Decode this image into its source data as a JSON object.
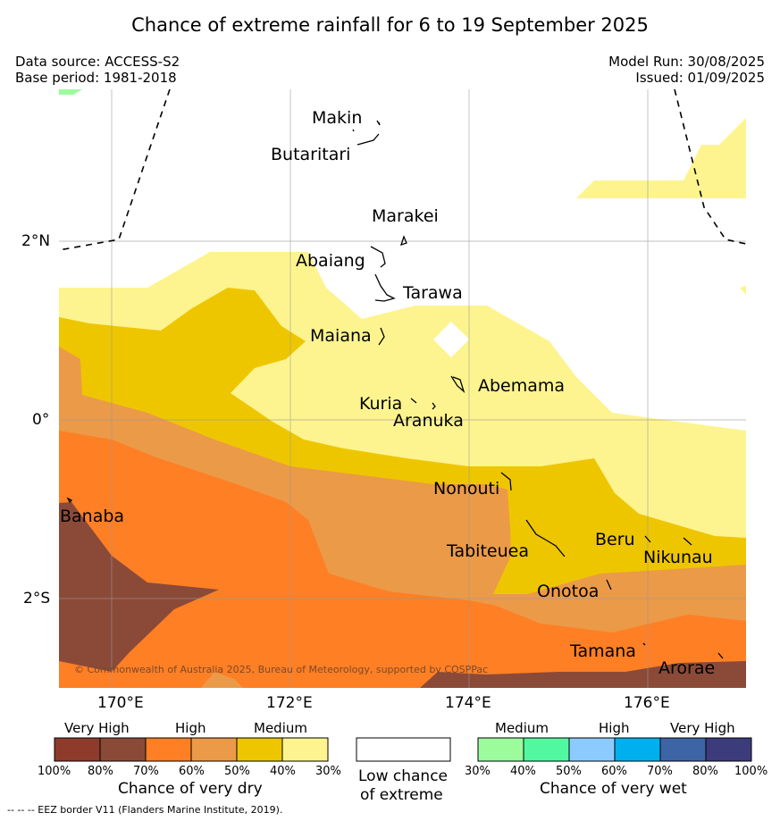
{
  "title": "Chance of extreme rainfall for 6 to 19 September 2025",
  "data_source": "Data source: ACCESS-S2",
  "base_period": "Base period: 1981-2018",
  "model_run": "Model Run: 30/08/2025",
  "issued": "Issued: 01/09/2025",
  "axes": {
    "lon_ticks": [
      "170°E",
      "172°E",
      "174°E",
      "176°E"
    ],
    "lat_ticks": [
      "2°N",
      "0°",
      "2°S"
    ]
  },
  "places": [
    "Makin",
    "Butaritari",
    "Marakei",
    "Abaiang",
    "Tarawa",
    "Maiana",
    "Abemama",
    "Kuria",
    "Aranuka",
    "Nonouti",
    "Banaba",
    "Tabiteuea",
    "Beru",
    "Nikunau",
    "Onotoa",
    "Tamana",
    "Arorae"
  ],
  "copyright": "© Commonwealth of Australia 2025, Bureau of Meteorology, supported by COSPPac",
  "legend": {
    "dry": {
      "groups": [
        "Very High",
        "High",
        "Medium"
      ],
      "percents": [
        "100%",
        "80%",
        "70%",
        "60%",
        "50%",
        "40%",
        "30%"
      ],
      "colors": [
        "#8e3b2b",
        "#8b4a38",
        "#ff7f24",
        "#eb9a48",
        "#eec600",
        "#fdf48f"
      ],
      "title": "Chance of very dry"
    },
    "low": {
      "title_line1": "Low chance",
      "title_line2": "of extreme"
    },
    "wet": {
      "groups": [
        "Medium",
        "High",
        "Very High"
      ],
      "percents": [
        "30%",
        "40%",
        "50%",
        "60%",
        "70%",
        "80%",
        "100%"
      ],
      "colors": [
        "#9cfc9c",
        "#52f8a0",
        "#8ccbff",
        "#00b0ee",
        "#3d64a5",
        "#3c3b7c"
      ],
      "title": "Chance of very wet"
    }
  },
  "eez_note": "--  --  -- EEZ border V11 (Flanders Marine Institute, 2019)."
}
